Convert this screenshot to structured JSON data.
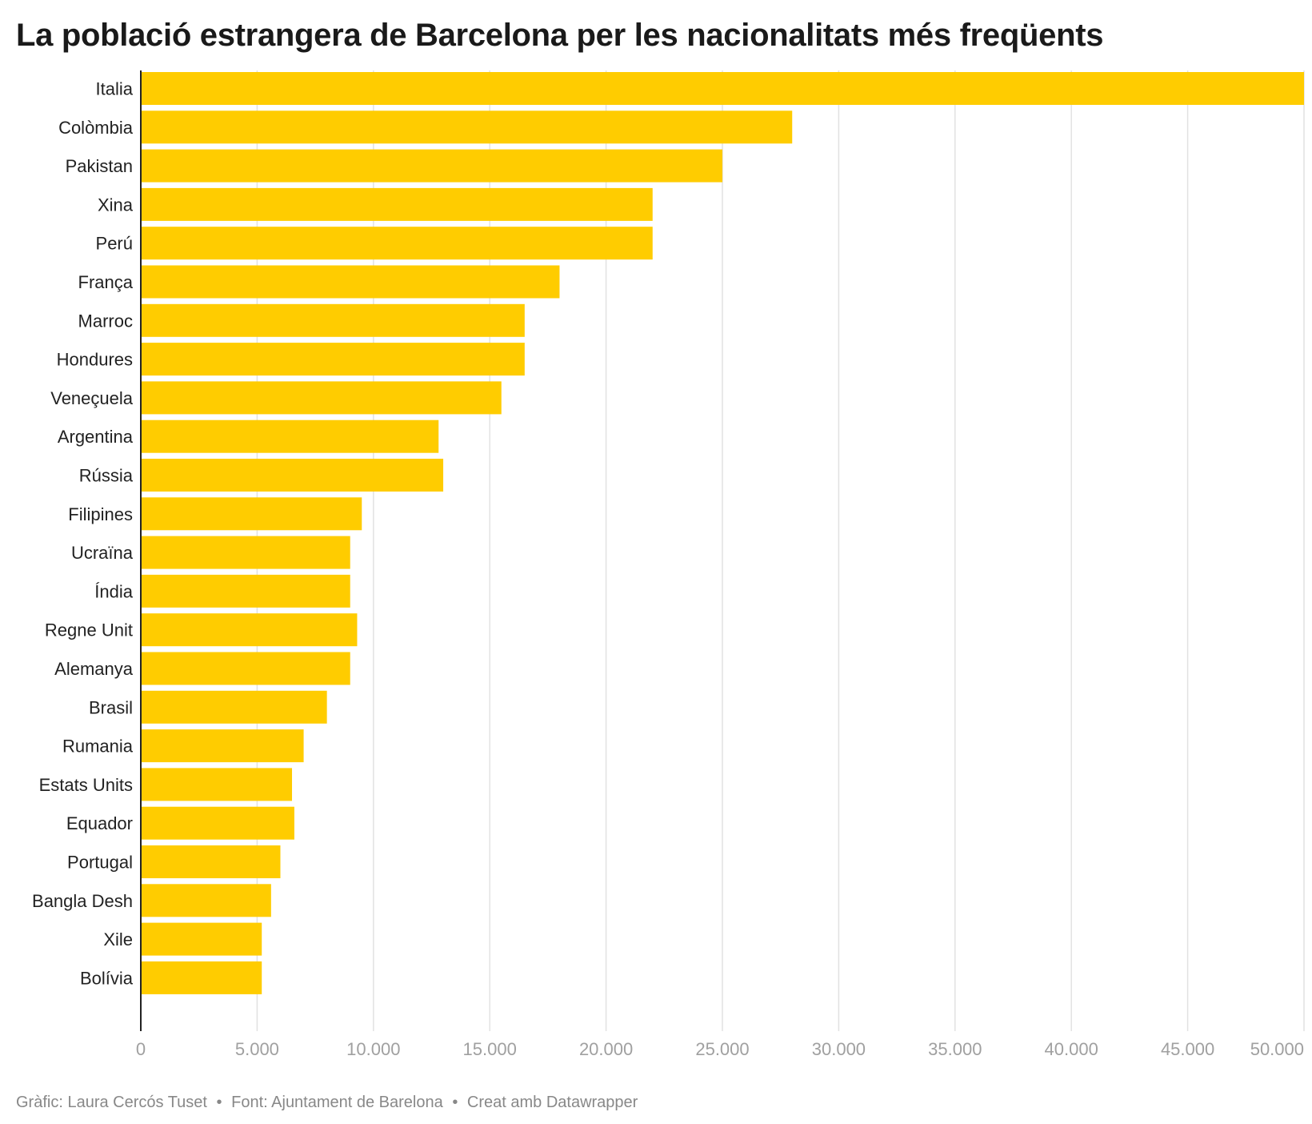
{
  "colors": {
    "bar": "#ffcc00",
    "grid": "#e2e2e2",
    "axis": "#222222"
  },
  "chart_data": {
    "type": "bar",
    "orientation": "horizontal",
    "title": "La població estrangera de Barcelona per les nacionalitats més freqüents",
    "categories": [
      "Italia",
      "Colòmbia",
      "Pakistan",
      "Xina",
      "Perú",
      "França",
      "Marroc",
      "Hondures",
      "Veneçuela",
      "Argentina",
      "Rússia",
      "Filipines",
      "Ucraïna",
      "Índia",
      "Regne Unit",
      "Alemanya",
      "Brasil",
      "Rumania",
      "Estats Units",
      "Equador",
      "Portugal",
      "Bangla Desh",
      "Xile",
      "Bolívia"
    ],
    "values": [
      50000,
      28000,
      25000,
      22000,
      22000,
      18000,
      16500,
      16500,
      15500,
      12800,
      13000,
      9500,
      9000,
      9000,
      9300,
      9000,
      8000,
      7000,
      6500,
      6600,
      6000,
      5600,
      5200,
      5200
    ],
    "xlim": [
      0,
      50000
    ],
    "ticks": [
      0,
      5000,
      10000,
      15000,
      20000,
      25000,
      30000,
      35000,
      40000,
      45000,
      50000
    ],
    "tick_labels": [
      "0",
      "5.000",
      "10.000",
      "15.000",
      "20.000",
      "25.000",
      "30.000",
      "35.000",
      "40.000",
      "45.000",
      "50.000"
    ],
    "grid": true,
    "xlabel": "",
    "ylabel": ""
  },
  "footer": {
    "credit": "Gràfic: Laura Cercós Tuset",
    "separator": "•",
    "source": "Font: Ajuntament de Barelona",
    "tool": "Creat amb Datawrapper"
  }
}
